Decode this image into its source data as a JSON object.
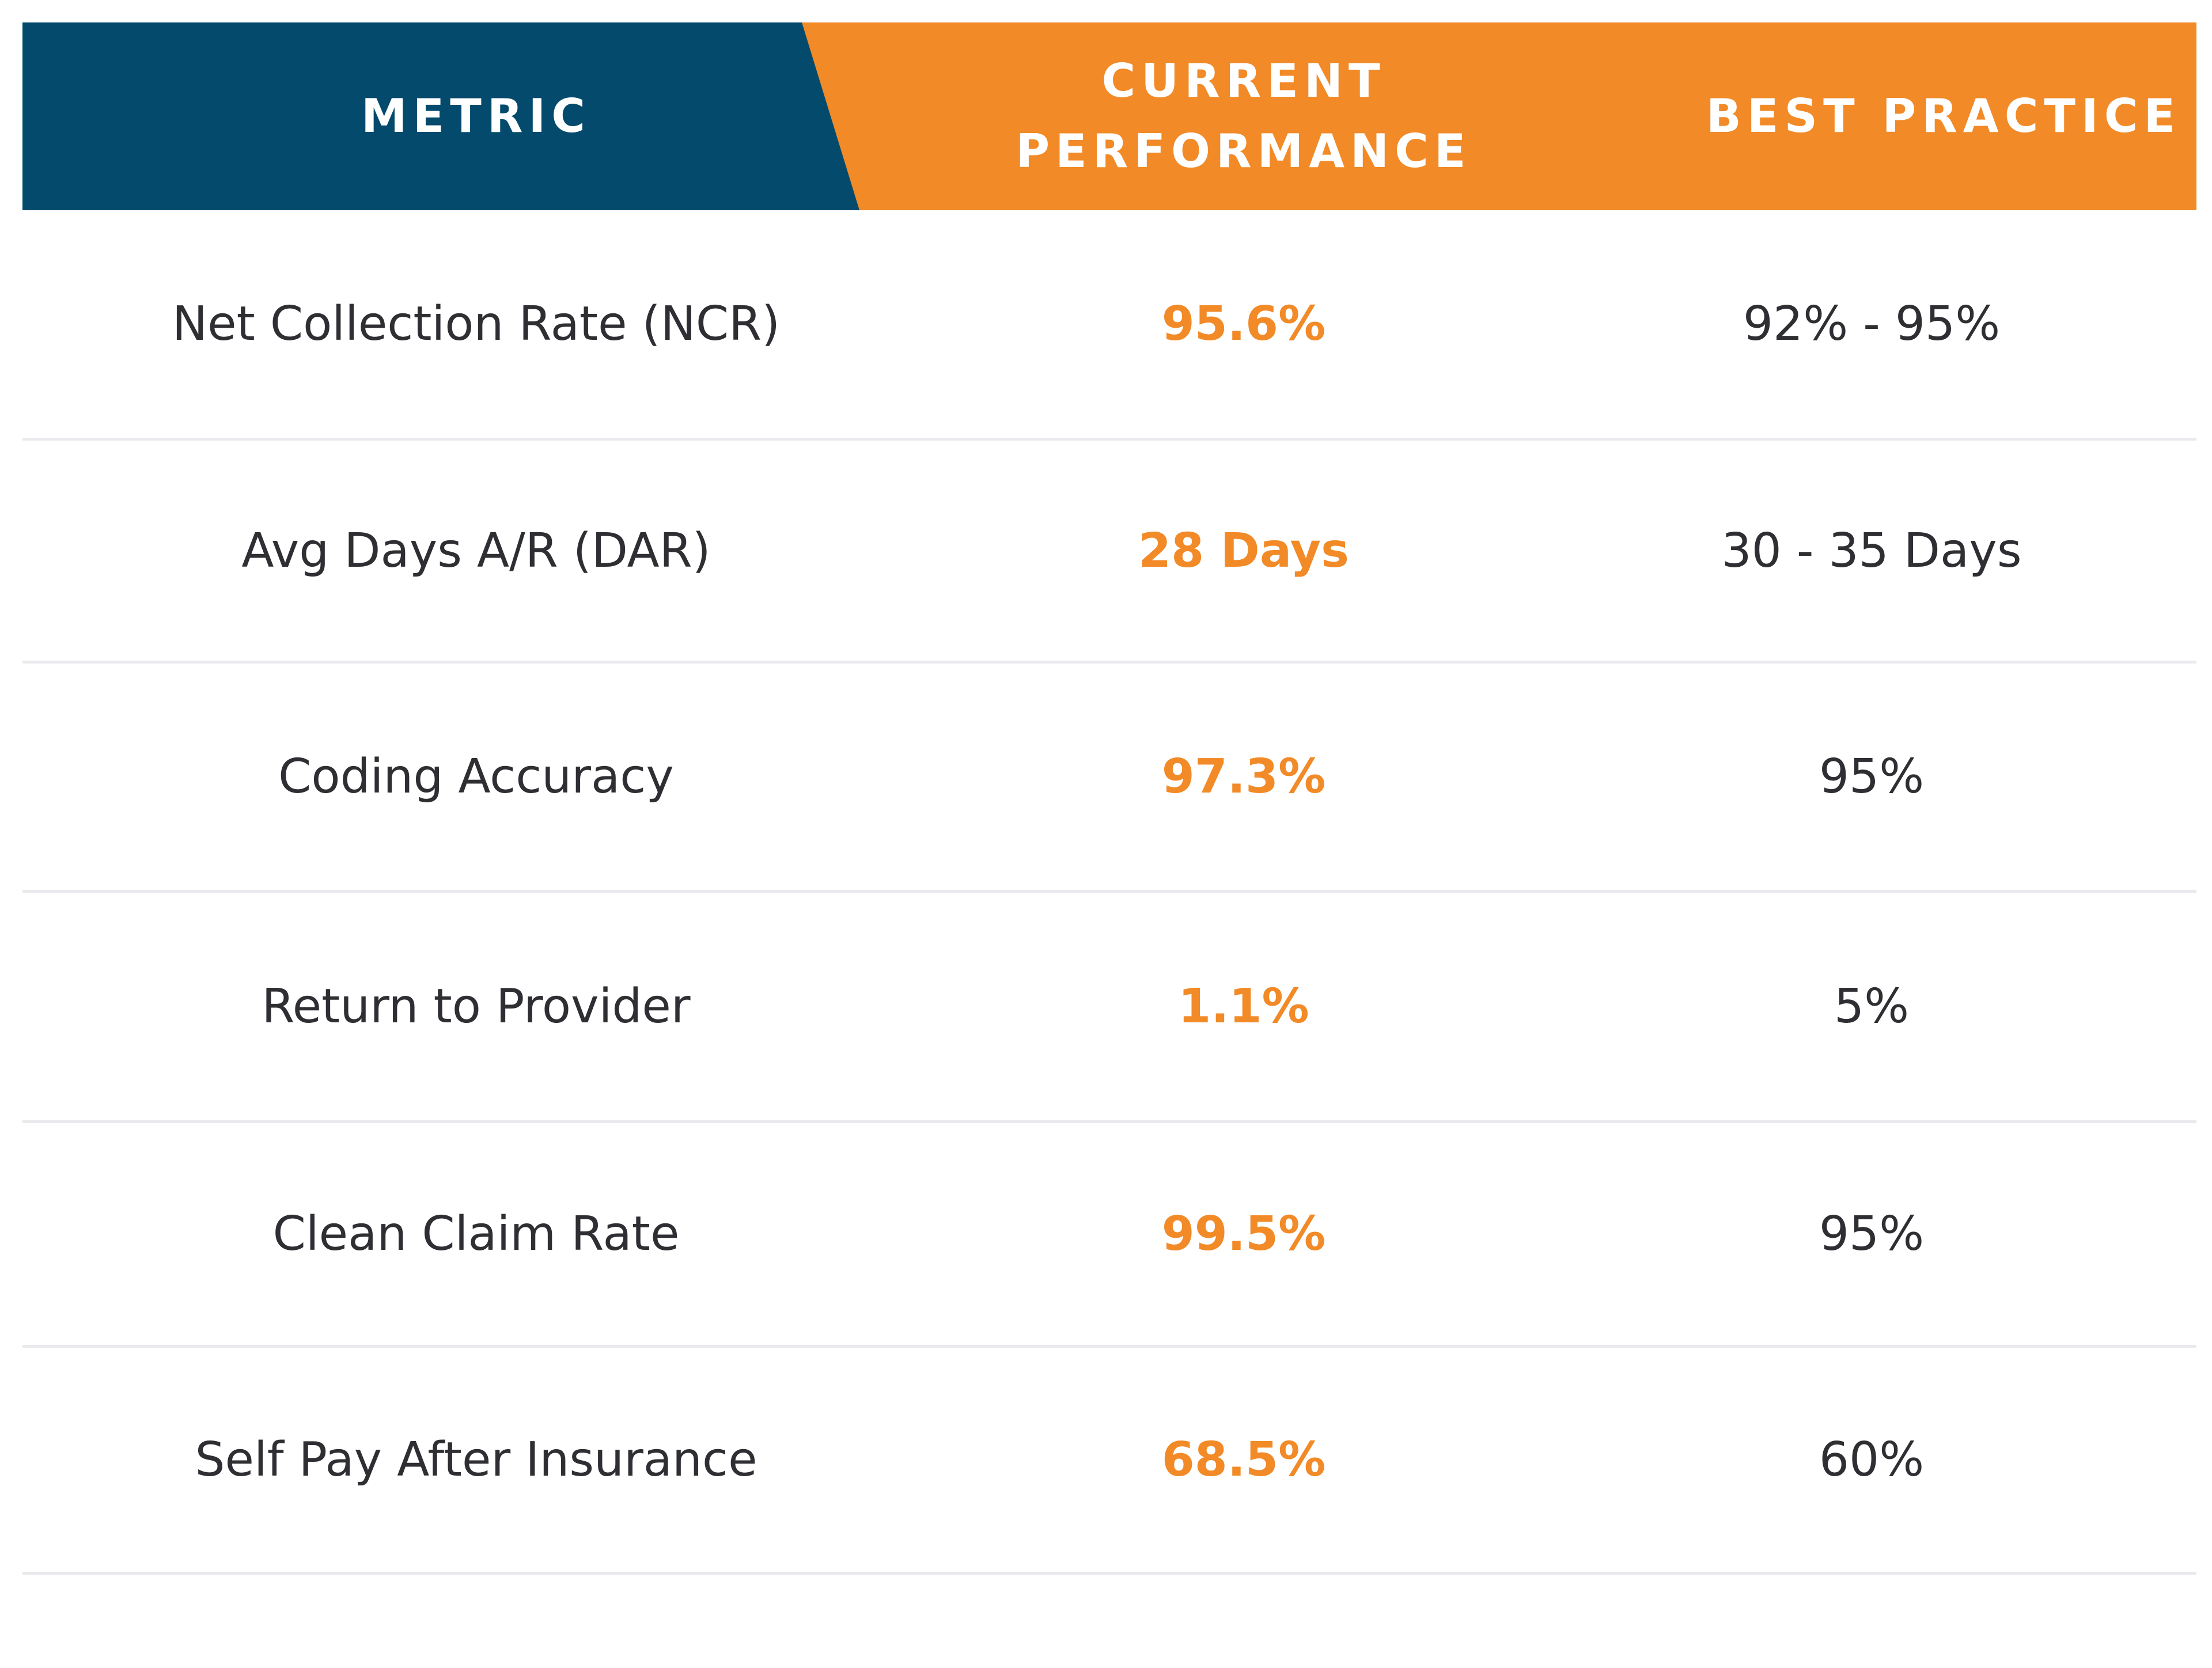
{
  "header": {
    "metric": "METRIC",
    "current_line1": "CURRENT",
    "current_line2": "PERFORMANCE",
    "best": "BEST PRACTICE"
  },
  "colors": {
    "navy": "#034a6c",
    "orange": "#f18a27",
    "text": "#2e2e33",
    "divider": "#e8eaed"
  },
  "rows": [
    {
      "metric": "Net Collection Rate (NCR)",
      "current": "95.6%",
      "best": "92% - 95%"
    },
    {
      "metric": "Avg Days A/R (DAR)",
      "current": "28 Days",
      "best": "30 - 35 Days"
    },
    {
      "metric": "Coding Accuracy",
      "current": "97.3%",
      "best": "95%"
    },
    {
      "metric": "Return to Provider",
      "current": "1.1%",
      "best": "5%"
    },
    {
      "metric": "Clean Claim Rate",
      "current": "99.5%",
      "best": "95%"
    },
    {
      "metric": "Self Pay After Insurance",
      "current": "68.5%",
      "best": "60%"
    }
  ]
}
